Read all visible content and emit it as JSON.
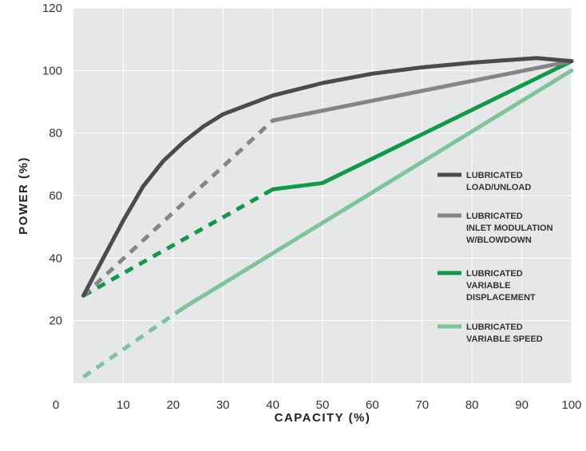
{
  "chart_data": {
    "type": "line",
    "title": "",
    "xlabel": "CAPACITY (%)",
    "ylabel": "POWER (%)",
    "xlim": [
      0,
      100
    ],
    "ylim": [
      0,
      120
    ],
    "x_ticks": [
      0,
      10,
      20,
      30,
      40,
      50,
      60,
      70,
      80,
      90,
      100
    ],
    "y_ticks": [
      0,
      20,
      40,
      60,
      80,
      100,
      120
    ],
    "grid": true,
    "legend_position": "right",
    "series": [
      {
        "name_lines": [
          "LUBRICATED",
          "LOAD/UNLOAD"
        ],
        "color": "#4b4b4d",
        "segments": [
          {
            "style": "solid",
            "points": [
              [
                2,
                28
              ],
              [
                6,
                40
              ],
              [
                10,
                52
              ],
              [
                14,
                63
              ],
              [
                18,
                71
              ],
              [
                22,
                77
              ],
              [
                26,
                82
              ],
              [
                30,
                86
              ],
              [
                35,
                89
              ],
              [
                40,
                92
              ],
              [
                50,
                96
              ],
              [
                60,
                99
              ],
              [
                70,
                101
              ],
              [
                80,
                102.5
              ],
              [
                93,
                104
              ],
              [
                100,
                103
              ]
            ]
          }
        ]
      },
      {
        "name_lines": [
          "LUBRICATED",
          "INLET MODULATION",
          "W/BLOWDOWN"
        ],
        "color": "#858587",
        "segments": [
          {
            "style": "dashed",
            "points": [
              [
                2,
                28
              ],
              [
                40,
                84
              ]
            ]
          },
          {
            "style": "solid",
            "points": [
              [
                40,
                84
              ],
              [
                100,
                103
              ]
            ]
          }
        ]
      },
      {
        "name_lines": [
          "LUBRICATED",
          "VARIABLE",
          "DISPLACEMENT"
        ],
        "color": "#0f9a48",
        "segments": [
          {
            "style": "dashed",
            "points": [
              [
                2,
                28
              ],
              [
                40,
                62
              ]
            ]
          },
          {
            "style": "solid",
            "points": [
              [
                40,
                62
              ],
              [
                50,
                64
              ],
              [
                100,
                103
              ]
            ]
          }
        ]
      },
      {
        "name_lines": [
          "LUBRICATED",
          "VARIABLE SPEED"
        ],
        "color": "#7ec49b",
        "segments": [
          {
            "style": "dashed",
            "points": [
              [
                2,
                2
              ],
              [
                22,
                24
              ]
            ]
          },
          {
            "style": "solid",
            "points": [
              [
                22,
                24
              ],
              [
                100,
                100
              ]
            ]
          }
        ]
      }
    ]
  }
}
